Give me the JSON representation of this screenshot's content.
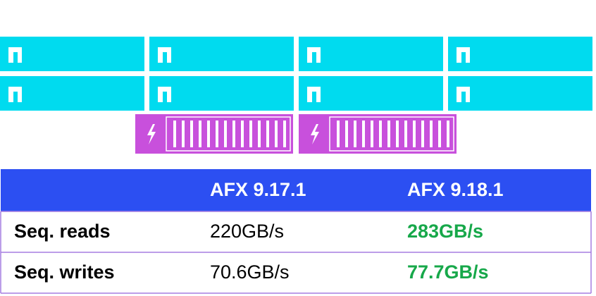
{
  "table": {
    "headers": [
      "AFX 9.17.1",
      "AFX 9.18.1"
    ],
    "rows": [
      [
        "Seq. reads",
        "220GB/s",
        "283GB/s"
      ],
      [
        "Seq. writes",
        "70.6GB/s",
        "77.7GB/s"
      ]
    ]
  }
}
